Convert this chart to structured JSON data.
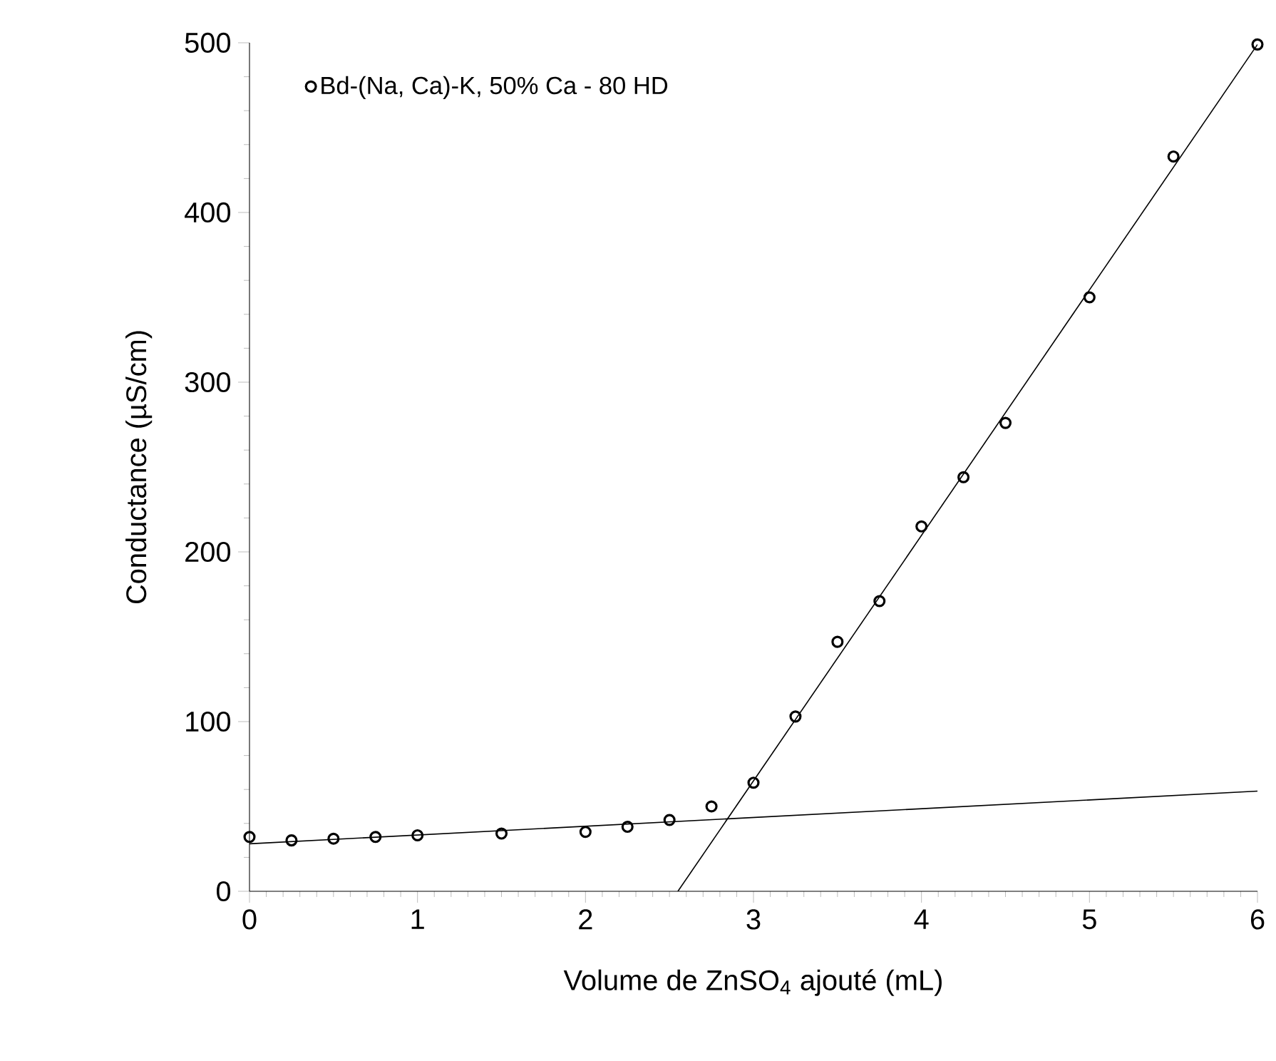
{
  "chart_data": {
    "type": "scatter",
    "xlabel": "Volume de ZnSO$_{4}$  ajouté (mL)",
    "ylabel": "Conductance (µS/cm)",
    "xlim": [
      0,
      6
    ],
    "ylim": [
      0,
      500
    ],
    "xticks": [
      0,
      1,
      2,
      3,
      4,
      5,
      6
    ],
    "yticks": [
      0,
      100,
      200,
      300,
      400,
      500
    ],
    "grid": false,
    "legend": "top left",
    "series": [
      {
        "name": "Bd-(Na, Ca)-K, 50% Ca - 80 HD",
        "marker": "circle",
        "color": "#000000",
        "x": [
          0,
          0.25,
          0.5,
          0.75,
          1,
          1.5,
          2,
          2.25,
          2.5,
          2.75,
          3,
          3.25,
          3.5,
          3.75,
          4,
          4.25,
          4.5,
          5,
          5.5,
          6
        ],
        "values": [
          32,
          30,
          31,
          32,
          33,
          34,
          35,
          38,
          42,
          50,
          64,
          103,
          147,
          171,
          215,
          244,
          276,
          350,
          433,
          499
        ]
      },
      {
        "type": "line",
        "marker": "none",
        "color": "#000000",
        "line_style": "solid",
        "x": [
          0,
          6
        ],
        "values": [
          28,
          59
        ]
      },
      {
        "type": "line",
        "marker": "none",
        "color": "#000000",
        "line_style": "solid",
        "x": [
          2.55,
          6
        ],
        "values": [
          0,
          499
        ]
      }
    ]
  }
}
